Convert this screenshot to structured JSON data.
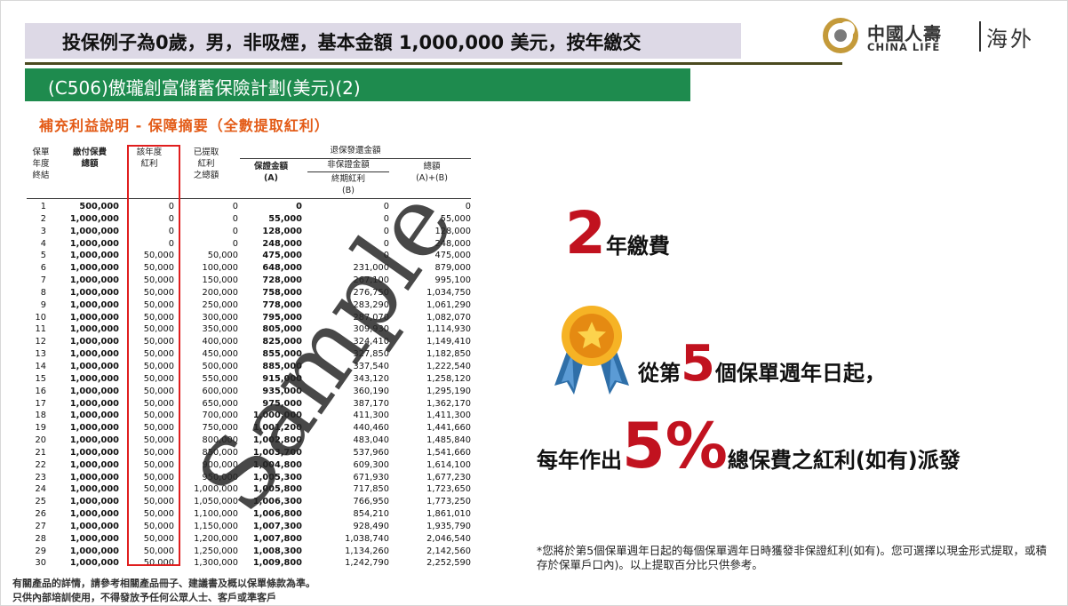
{
  "header": {
    "title": "投保例子為0歲，男，非吸煙，基本金額 1,000,000 美元，按年繳交",
    "logo_cn": "中國人壽",
    "logo_en": "CHINA LIFE",
    "logo_overseas": "海外"
  },
  "plan_title": "(C506)傲瓏創富儲蓄保險計劃(美元)(2)",
  "subtitle": "補充利益說明 - 保障摘要（全數提取紅利）",
  "table": {
    "headers": {
      "year": [
        "保單",
        "年度",
        "終結"
      ],
      "premium": [
        "繳付保費",
        "總額"
      ],
      "dividend": [
        "該年度",
        "紅利"
      ],
      "cumulative": [
        "已提取",
        "紅利",
        "之總額"
      ],
      "surrender_group": "退保發還金額",
      "guaranteed": [
        "保證金額",
        "(A)"
      ],
      "non_guaranteed": "非保證金額",
      "terminal": [
        "終期紅利",
        "(B)"
      ],
      "total": [
        "總額",
        "(A)+(B)"
      ]
    },
    "rows": [
      {
        "year": "1",
        "premium": "500,000",
        "dividend": "0",
        "cumulative": "0",
        "guaranteed": "0",
        "terminal": "0",
        "total": "0"
      },
      {
        "year": "2",
        "premium": "1,000,000",
        "dividend": "0",
        "cumulative": "0",
        "guaranteed": "55,000",
        "terminal": "0",
        "total": "55,000"
      },
      {
        "year": "3",
        "premium": "1,000,000",
        "dividend": "0",
        "cumulative": "0",
        "guaranteed": "128,000",
        "terminal": "0",
        "total": "128,000"
      },
      {
        "year": "4",
        "premium": "1,000,000",
        "dividend": "0",
        "cumulative": "0",
        "guaranteed": "248,000",
        "terminal": "0",
        "total": "248,000"
      },
      {
        "year": "5",
        "premium": "1,000,000",
        "dividend": "50,000",
        "cumulative": "50,000",
        "guaranteed": "475,000",
        "terminal": "0",
        "total": "475,000"
      },
      {
        "year": "6",
        "premium": "1,000,000",
        "dividend": "50,000",
        "cumulative": "100,000",
        "guaranteed": "648,000",
        "terminal": "231,000",
        "total": "879,000"
      },
      {
        "year": "7",
        "premium": "1,000,000",
        "dividend": "50,000",
        "cumulative": "150,000",
        "guaranteed": "728,000",
        "terminal": "267,100",
        "total": "995,100"
      },
      {
        "year": "8",
        "premium": "1,000,000",
        "dividend": "50,000",
        "cumulative": "200,000",
        "guaranteed": "758,000",
        "terminal": "276,750",
        "total": "1,034,750"
      },
      {
        "year": "9",
        "premium": "1,000,000",
        "dividend": "50,000",
        "cumulative": "250,000",
        "guaranteed": "778,000",
        "terminal": "283,290",
        "total": "1,061,290"
      },
      {
        "year": "10",
        "premium": "1,000,000",
        "dividend": "50,000",
        "cumulative": "300,000",
        "guaranteed": "795,000",
        "terminal": "287,070",
        "total": "1,082,070"
      },
      {
        "year": "11",
        "premium": "1,000,000",
        "dividend": "50,000",
        "cumulative": "350,000",
        "guaranteed": "805,000",
        "terminal": "309,930",
        "total": "1,114,930"
      },
      {
        "year": "12",
        "premium": "1,000,000",
        "dividend": "50,000",
        "cumulative": "400,000",
        "guaranteed": "825,000",
        "terminal": "324,410",
        "total": "1,149,410"
      },
      {
        "year": "13",
        "premium": "1,000,000",
        "dividend": "50,000",
        "cumulative": "450,000",
        "guaranteed": "855,000",
        "terminal": "327,850",
        "total": "1,182,850"
      },
      {
        "year": "14",
        "premium": "1,000,000",
        "dividend": "50,000",
        "cumulative": "500,000",
        "guaranteed": "885,000",
        "terminal": "337,540",
        "total": "1,222,540"
      },
      {
        "year": "15",
        "premium": "1,000,000",
        "dividend": "50,000",
        "cumulative": "550,000",
        "guaranteed": "915,000",
        "terminal": "343,120",
        "total": "1,258,120"
      },
      {
        "year": "16",
        "premium": "1,000,000",
        "dividend": "50,000",
        "cumulative": "600,000",
        "guaranteed": "935,000",
        "terminal": "360,190",
        "total": "1,295,190"
      },
      {
        "year": "17",
        "premium": "1,000,000",
        "dividend": "50,000",
        "cumulative": "650,000",
        "guaranteed": "975,000",
        "terminal": "387,170",
        "total": "1,362,170"
      },
      {
        "year": "18",
        "premium": "1,000,000",
        "dividend": "50,000",
        "cumulative": "700,000",
        "guaranteed": "1,000,000",
        "terminal": "411,300",
        "total": "1,411,300"
      },
      {
        "year": "19",
        "premium": "1,000,000",
        "dividend": "50,000",
        "cumulative": "750,000",
        "guaranteed": "1,001,200",
        "terminal": "440,460",
        "total": "1,441,660"
      },
      {
        "year": "20",
        "premium": "1,000,000",
        "dividend": "50,000",
        "cumulative": "800,000",
        "guaranteed": "1,002,800",
        "terminal": "483,040",
        "total": "1,485,840"
      },
      {
        "year": "21",
        "premium": "1,000,000",
        "dividend": "50,000",
        "cumulative": "850,000",
        "guaranteed": "1,003,700",
        "terminal": "537,960",
        "total": "1,541,660"
      },
      {
        "year": "22",
        "premium": "1,000,000",
        "dividend": "50,000",
        "cumulative": "900,000",
        "guaranteed": "1,004,800",
        "terminal": "609,300",
        "total": "1,614,100"
      },
      {
        "year": "23",
        "premium": "1,000,000",
        "dividend": "50,000",
        "cumulative": "950,000",
        "guaranteed": "1,005,300",
        "terminal": "671,930",
        "total": "1,677,230"
      },
      {
        "year": "24",
        "premium": "1,000,000",
        "dividend": "50,000",
        "cumulative": "1,000,000",
        "guaranteed": "1,005,800",
        "terminal": "717,850",
        "total": "1,723,650"
      },
      {
        "year": "25",
        "premium": "1,000,000",
        "dividend": "50,000",
        "cumulative": "1,050,000",
        "guaranteed": "1,006,300",
        "terminal": "766,950",
        "total": "1,773,250"
      },
      {
        "year": "26",
        "premium": "1,000,000",
        "dividend": "50,000",
        "cumulative": "1,100,000",
        "guaranteed": "1,006,800",
        "terminal": "854,210",
        "total": "1,861,010"
      },
      {
        "year": "27",
        "premium": "1,000,000",
        "dividend": "50,000",
        "cumulative": "1,150,000",
        "guaranteed": "1,007,300",
        "terminal": "928,490",
        "total": "1,935,790"
      },
      {
        "year": "28",
        "premium": "1,000,000",
        "dividend": "50,000",
        "cumulative": "1,200,000",
        "guaranteed": "1,007,800",
        "terminal": "1,038,740",
        "total": "2,046,540"
      },
      {
        "year": "29",
        "premium": "1,000,000",
        "dividend": "50,000",
        "cumulative": "1,250,000",
        "guaranteed": "1,008,300",
        "terminal": "1,134,260",
        "total": "2,142,560"
      },
      {
        "year": "30",
        "premium": "1,000,000",
        "dividend": "50,000",
        "cumulative": "1,300,000",
        "guaranteed": "1,009,800",
        "terminal": "1,242,790",
        "total": "2,252,590"
      }
    ]
  },
  "watermark": "Sample",
  "highlights": {
    "h1_num": "2",
    "h1_text": "年繳費",
    "h2_pre": "從第",
    "h2_num": "5",
    "h2_post": "個保單週年日起，",
    "h3_pre": "每年作出",
    "h3_num": "5%",
    "h3_post": "總保費之紅利(如有)派發"
  },
  "note": "*您將於第5個保單週年日起的每個保單週年日時獲發非保證紅利(如有)。您可選擇以現金形式提取，或積存於保單戶口內)。以上提取百分比只供參考。",
  "footer": {
    "line1": "有關產品的詳情，請參考相關產品冊子、建議書及概以保單條款為準。",
    "line2": "只供內部培訓使用，不得發放予任何公眾人士、客戶或準客戶"
  },
  "colors": {
    "title_band": "#ddd9e6",
    "green": "#1e8b4e",
    "orange": "#e35b17",
    "red": "#c1121f",
    "highlight_box": "#e01e1e"
  }
}
